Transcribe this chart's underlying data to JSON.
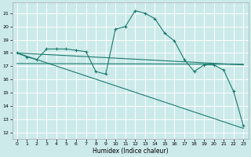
{
  "xlabel": "Humidex (Indice chaleur)",
  "xlim": [
    -0.5,
    23.5
  ],
  "ylim": [
    11.5,
    21.8
  ],
  "yticks": [
    12,
    13,
    14,
    15,
    16,
    17,
    18,
    19,
    20,
    21
  ],
  "xticks": [
    0,
    1,
    2,
    3,
    4,
    5,
    6,
    7,
    8,
    9,
    10,
    11,
    12,
    13,
    14,
    15,
    16,
    17,
    18,
    19,
    20,
    21,
    22,
    23
  ],
  "bg_color": "#cceaea",
  "grid_color": "#ffffff",
  "line_color": "#1a7a6e",
  "series": {
    "line1": {
      "x": [
        0,
        1,
        2,
        3,
        4,
        5,
        6,
        7,
        8,
        9,
        10,
        11,
        12,
        13,
        14,
        15,
        16,
        17,
        18,
        19,
        20,
        21,
        22,
        23
      ],
      "y": [
        18.0,
        17.7,
        17.5,
        18.3,
        18.3,
        18.3,
        18.2,
        18.1,
        16.6,
        16.4,
        19.8,
        20.0,
        21.2,
        21.0,
        20.6,
        19.5,
        18.9,
        17.5,
        16.6,
        17.1,
        17.1,
        16.7,
        15.1,
        12.5
      ]
    },
    "line2": {
      "x": [
        0,
        23
      ],
      "y": [
        18.0,
        17.1
      ]
    },
    "line3": {
      "x": [
        0,
        23
      ],
      "y": [
        18.0,
        12.3
      ]
    },
    "line4": {
      "x": [
        0,
        23
      ],
      "y": [
        17.2,
        17.15
      ]
    }
  }
}
